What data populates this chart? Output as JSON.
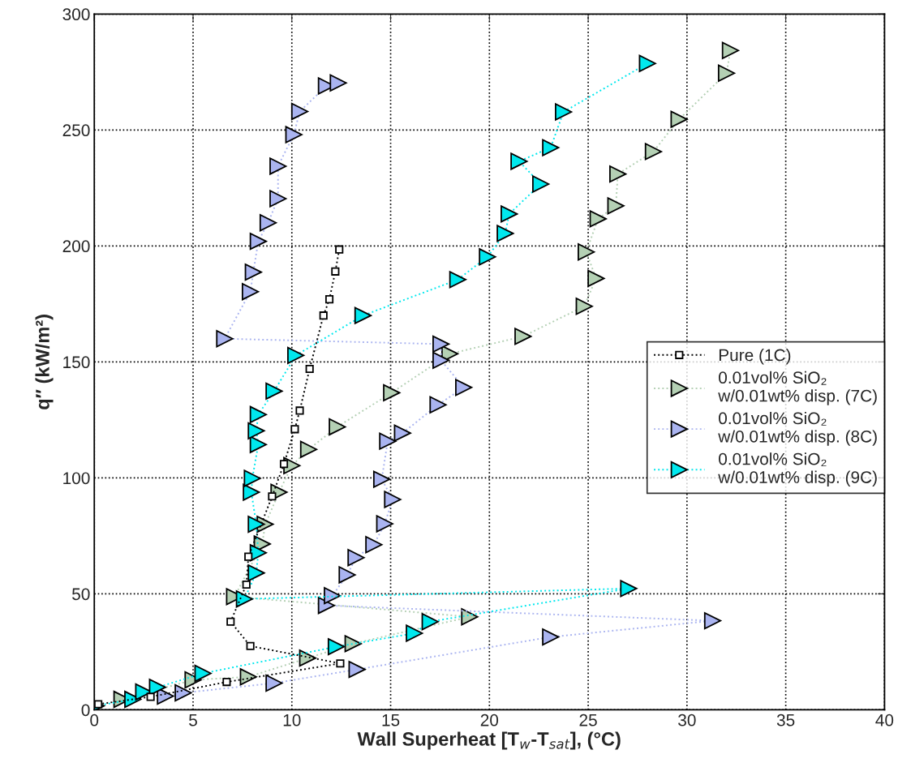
{
  "chart_data": {
    "type": "line",
    "xlabel": "Wall Superheat [T$_{w}$-T$_{sat}$], (°C)",
    "ylabel": "q″ (kW/m²)",
    "xlim": [
      0,
      40
    ],
    "xticks": [
      0,
      5,
      10,
      15,
      20,
      25,
      30,
      35,
      40
    ],
    "ylim": [
      0,
      300
    ],
    "yticks": [
      0,
      50,
      100,
      150,
      200,
      250,
      300
    ],
    "grid": true,
    "legend": "right",
    "line_style": "dotted",
    "series": [
      {
        "name": "Pure (1C)",
        "color": "#000000",
        "marker": "square",
        "x": [
          0.2,
          2.85,
          6.7,
          12.45,
          7.9,
          6.9,
          7.7,
          7.8,
          9.0,
          9.6,
          10.15,
          10.4,
          10.9,
          11.6,
          11.9,
          12.2,
          12.4
        ],
        "values": [
          2.4,
          5.6,
          12,
          20,
          27.5,
          38,
          54,
          66,
          92,
          106,
          121,
          129,
          147,
          170,
          177,
          189,
          198.5
        ]
      },
      {
        "name": "0.01vol% SiO₂\nw/0.01wt% disp. (7C)",
        "color": "#b4d0b4",
        "marker": "triangle",
        "x": [
          1.4,
          5.0,
          7.8,
          10.8,
          13.1,
          19.0,
          7.1,
          8.5,
          8.65,
          9.35,
          10.0,
          10.85,
          12.3,
          15.05,
          18.0,
          21.7,
          24.8,
          25.4,
          24.9,
          25.5,
          26.4,
          26.5,
          28.3,
          29.6,
          32.0,
          32.2
        ],
        "values": [
          4.5,
          12.9,
          14.2,
          22.3,
          28.5,
          40.1,
          48.8,
          71.5,
          80,
          93.8,
          105.3,
          112.3,
          122,
          136.7,
          153.5,
          161,
          174,
          186,
          197.4,
          211.7,
          217.3,
          231,
          240.7,
          254.6,
          274.5,
          284.3
        ]
      },
      {
        "name": "0.01vol% SiO₂\nw/0.01wt% disp. (8C)",
        "color": "#aab4f0",
        "marker": "triangle",
        "x": [
          3.6,
          4.5,
          9.1,
          13.3,
          23.1,
          31.3,
          11.75,
          12.05,
          12.8,
          13.25,
          14.15,
          14.7,
          15.1,
          14.55,
          14.85,
          15.6,
          17.4,
          18.7,
          17.55,
          17.55,
          6.6,
          7.9,
          8.05,
          8.3,
          8.8,
          9.3,
          9.3,
          10.1,
          10.4,
          11.75,
          12.35
        ],
        "values": [
          5.9,
          7.3,
          11.5,
          17.4,
          31.4,
          38.4,
          45,
          49.2,
          58.2,
          65.6,
          71.2,
          80.2,
          90.7,
          99.4,
          115.8,
          119.3,
          131.5,
          139,
          150.7,
          157.7,
          160,
          180.3,
          188.7,
          202,
          210,
          220.4,
          234.4,
          248,
          258,
          269,
          270.3
        ]
      },
      {
        "name": "0.01vol% SiO₂\nw/0.01wt% disp. (9C)",
        "color": "#00e8ee",
        "marker": "triangle",
        "x": [
          0.1,
          1.95,
          2.5,
          3.2,
          5.5,
          12.25,
          16.2,
          17.0,
          27.05,
          7.6,
          8.2,
          8.3,
          8.2,
          7.95,
          8.0,
          8.3,
          8.2,
          8.3,
          9.1,
          10.2,
          13.6,
          18.4,
          19.9,
          20.8,
          21.0,
          22.6,
          21.5,
          23.1,
          23.75,
          28.0
        ],
        "values": [
          1.7,
          4.5,
          7.7,
          9.7,
          15.7,
          27.2,
          33,
          38,
          52.3,
          47.8,
          59,
          67.7,
          80,
          93.8,
          99.8,
          114.4,
          120.3,
          127.3,
          137.4,
          152.8,
          170,
          185.5,
          195.3,
          205.4,
          213.8,
          226.7,
          236.5,
          242.4,
          257.8,
          278.7
        ]
      }
    ]
  }
}
